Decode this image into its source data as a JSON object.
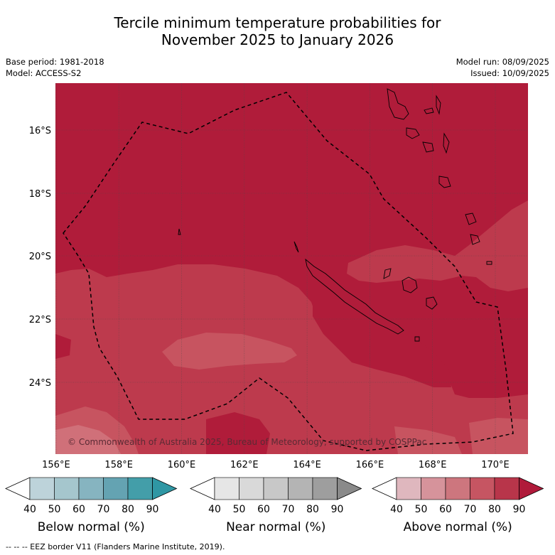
{
  "title_line1": "Tercile minimum temperature probabilities for",
  "title_line2": "November 2025 to January 2026",
  "base_period": "Base period: 1981-2018",
  "model": "Model: ACCESS-S2",
  "model_run": "Model run: 08/09/2025",
  "issued": "Issued: 10/09/2025",
  "copyright": "© Commonwealth of Australia 2025, Bureau of Meteorology, supported by COSPPac",
  "footer_legend": "--  --  -- EEZ border V11 (Flanders Marine Institute, 2019).",
  "map": {
    "lon_ticks": [
      "156°E",
      "158°E",
      "160°E",
      "162°E",
      "164°E",
      "166°E",
      "168°E",
      "170°E"
    ],
    "lat_ticks": [
      "16°S",
      "18°S",
      "20°S",
      "22°S",
      "24°S"
    ],
    "extent": {
      "lon_min": 155.98,
      "lon_max": 171.05,
      "lat_min": -25.9,
      "lat_max": -14.9
    }
  },
  "colorbars": [
    {
      "title": "Below normal (%)",
      "ticks": [
        "40",
        "50",
        "60",
        "70",
        "80",
        "90"
      ],
      "colors": [
        "#ffffff",
        "#bdd3da",
        "#a5c6cd",
        "#86b4c0",
        "#64a3b2",
        "#439ea9",
        "#2f97a4"
      ]
    },
    {
      "title": "Near normal (%)",
      "ticks": [
        "40",
        "50",
        "60",
        "70",
        "80",
        "90"
      ],
      "colors": [
        "#ffffff",
        "#e6e6e6",
        "#d9d9d9",
        "#c8c8c8",
        "#b4b4b4",
        "#9e9e9e",
        "#8a8a8a"
      ]
    },
    {
      "title": "Above normal (%)",
      "ticks": [
        "40",
        "50",
        "60",
        "70",
        "80",
        "90"
      ],
      "colors": [
        "#ffffff",
        "#dfb7be",
        "#d6939b",
        "#cd767e",
        "#c65562",
        "#b8354a",
        "#b01a3a"
      ]
    }
  ],
  "fill_colors": {
    "above_90": "#b01c3a",
    "above_80": "#bd3a4d",
    "above_70": "#c75460",
    "above_60": "#d07079"
  }
}
